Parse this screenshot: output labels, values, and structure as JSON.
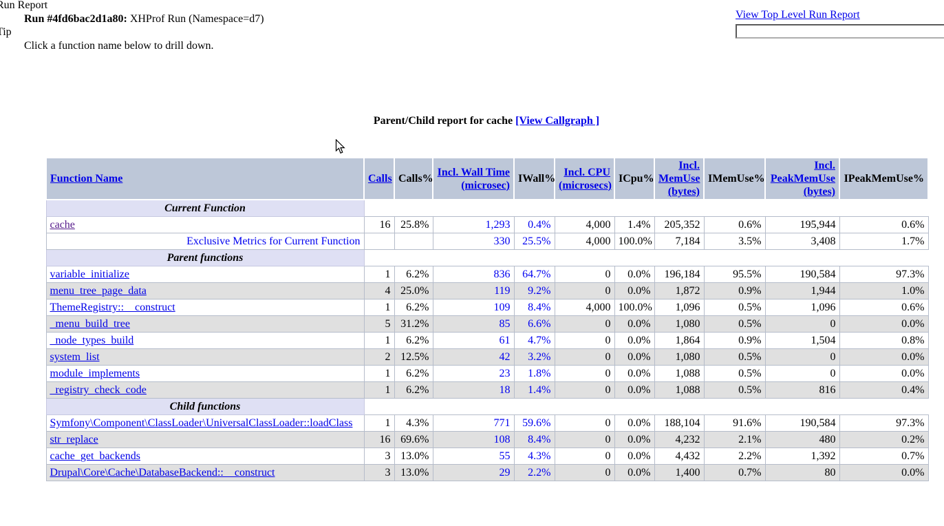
{
  "page": {
    "run_report_label": "Run Report",
    "run_id": "Run #4fd6bac2d1a80:",
    "run_desc": " XHProf Run (Namespace=d7)",
    "tip_label": "Tip",
    "tip_text": "Click a function name below to drill down.",
    "view_top_level_link": "View Top Level Run Report",
    "search_input_value": ""
  },
  "title": {
    "text": "Parent/Child report for cache",
    "callgraph_link": "[View Callgraph ]"
  },
  "colors": {
    "header_bg": "#bdc7d8",
    "section_bg": "#dfe0f4",
    "row_alt_bg": "#e0e0e0",
    "link_blue": "#0000e8",
    "visited_link_purple": "#551a8b",
    "metric_blue": "#0000f0",
    "cell_border": "#b5bcca"
  },
  "table": {
    "headers": [
      {
        "label": "Function Name",
        "sortable": true
      },
      {
        "label": "Calls",
        "sortable": true
      },
      {
        "label": "Calls%",
        "sortable": false
      },
      {
        "label": "Incl. Wall Time (microsec)",
        "sortable": true
      },
      {
        "label": "IWall%",
        "sortable": false
      },
      {
        "label": "Incl. CPU (microsecs)",
        "sortable": true
      },
      {
        "label": "ICpu%",
        "sortable": false
      },
      {
        "label": "Incl. MemUse (bytes)",
        "sortable": true
      },
      {
        "label": "IMemUse%",
        "sortable": false
      },
      {
        "label": "Incl. PeakMemUse (bytes)",
        "sortable": true
      },
      {
        "label": "IPeakMemUse%",
        "sortable": false
      }
    ],
    "blue_value_columns": [
      2,
      3
    ],
    "rows": [
      {
        "kind": "section",
        "label": "Current Function"
      },
      {
        "kind": "data",
        "fn": "cache",
        "fn_style": "visited-link",
        "zebra": "white",
        "values": [
          "16",
          "25.8%",
          "1,293",
          "0.4%",
          "4,000",
          "1.4%",
          "205,352",
          "0.6%",
          "195,944",
          "0.6%"
        ]
      },
      {
        "kind": "data",
        "fn": "Exclusive Metrics for Current Function",
        "fn_style": "note",
        "zebra": "white",
        "values": [
          "",
          "",
          "330",
          "25.5%",
          "4,000",
          "100.0%",
          "7,184",
          "3.5%",
          "3,408",
          "1.7%"
        ]
      },
      {
        "kind": "section",
        "label": "Parent functions"
      },
      {
        "kind": "data",
        "fn": "variable_initialize",
        "fn_style": "link",
        "zebra": "white",
        "values": [
          "1",
          "6.2%",
          "836",
          "64.7%",
          "0",
          "0.0%",
          "196,184",
          "95.5%",
          "190,584",
          "97.3%"
        ]
      },
      {
        "kind": "data",
        "fn": "menu_tree_page_data",
        "fn_style": "link",
        "zebra": "gray",
        "values": [
          "4",
          "25.0%",
          "119",
          "9.2%",
          "0",
          "0.0%",
          "1,872",
          "0.9%",
          "1,944",
          "1.0%"
        ]
      },
      {
        "kind": "data",
        "fn": "ThemeRegistry::__construct",
        "fn_style": "link",
        "zebra": "white",
        "values": [
          "1",
          "6.2%",
          "109",
          "8.4%",
          "4,000",
          "100.0%",
          "1,096",
          "0.5%",
          "1,096",
          "0.6%"
        ]
      },
      {
        "kind": "data",
        "fn": "_menu_build_tree",
        "fn_style": "link",
        "zebra": "gray",
        "values": [
          "5",
          "31.2%",
          "85",
          "6.6%",
          "0",
          "0.0%",
          "1,080",
          "0.5%",
          "0",
          "0.0%"
        ]
      },
      {
        "kind": "data",
        "fn": "_node_types_build",
        "fn_style": "link",
        "zebra": "white",
        "values": [
          "1",
          "6.2%",
          "61",
          "4.7%",
          "0",
          "0.0%",
          "1,864",
          "0.9%",
          "1,504",
          "0.8%"
        ]
      },
      {
        "kind": "data",
        "fn": "system_list",
        "fn_style": "link",
        "zebra": "gray",
        "values": [
          "2",
          "12.5%",
          "42",
          "3.2%",
          "0",
          "0.0%",
          "1,080",
          "0.5%",
          "0",
          "0.0%"
        ]
      },
      {
        "kind": "data",
        "fn": "module_implements",
        "fn_style": "link",
        "zebra": "white",
        "values": [
          "1",
          "6.2%",
          "23",
          "1.8%",
          "0",
          "0.0%",
          "1,088",
          "0.5%",
          "0",
          "0.0%"
        ]
      },
      {
        "kind": "data",
        "fn": "_registry_check_code",
        "fn_style": "link",
        "zebra": "gray",
        "values": [
          "1",
          "6.2%",
          "18",
          "1.4%",
          "0",
          "0.0%",
          "1,088",
          "0.5%",
          "816",
          "0.4%"
        ]
      },
      {
        "kind": "section",
        "label": "Child functions"
      },
      {
        "kind": "data",
        "fn": "Symfony\\Component\\ClassLoader\\UniversalClassLoader::loadClass",
        "fn_style": "link",
        "zebra": "white",
        "values": [
          "1",
          "4.3%",
          "771",
          "59.6%",
          "0",
          "0.0%",
          "188,104",
          "91.6%",
          "190,584",
          "97.3%"
        ]
      },
      {
        "kind": "data",
        "fn": "str_replace",
        "fn_style": "link",
        "zebra": "gray",
        "values": [
          "16",
          "69.6%",
          "108",
          "8.4%",
          "0",
          "0.0%",
          "4,232",
          "2.1%",
          "480",
          "0.2%"
        ]
      },
      {
        "kind": "data",
        "fn": "cache_get_backends",
        "fn_style": "link",
        "zebra": "white",
        "values": [
          "3",
          "13.0%",
          "55",
          "4.3%",
          "0",
          "0.0%",
          "4,432",
          "2.2%",
          "1,392",
          "0.7%"
        ]
      },
      {
        "kind": "data",
        "fn": "Drupal\\Core\\Cache\\DatabaseBackend::__construct",
        "fn_style": "link",
        "zebra": "gray",
        "values": [
          "3",
          "13.0%",
          "29",
          "2.2%",
          "0",
          "0.0%",
          "1,400",
          "0.7%",
          "80",
          "0.0%"
        ]
      }
    ]
  }
}
